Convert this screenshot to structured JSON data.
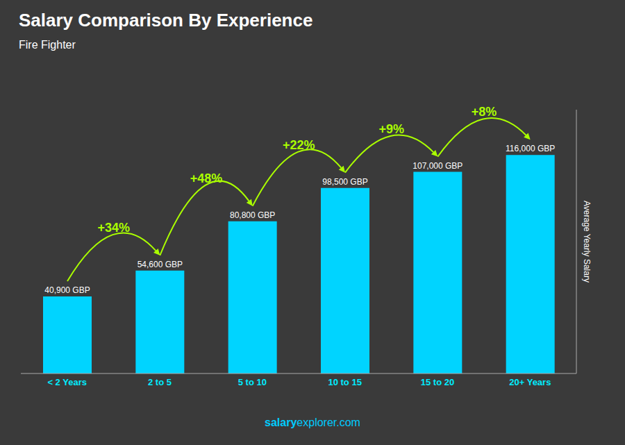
{
  "chart_data": {
    "type": "bar",
    "title": "Salary Comparison By Experience",
    "subtitle": "Fire Fighter",
    "y_label": "Average Yearly Salary",
    "categories": [
      "< 2 Years",
      "2 to 5",
      "5 to 10",
      "10 to 15",
      "15 to 20",
      "20+ Years"
    ],
    "values": [
      40900,
      54600,
      80800,
      98500,
      107000,
      116000
    ],
    "value_labels": [
      "40,900 GBP",
      "54,600 GBP",
      "80,800 GBP",
      "98,500 GBP",
      "107,000 GBP",
      "116,000 GBP"
    ],
    "data_labels": true,
    "color": "#00d4ff",
    "ylim": [
      0,
      140000
    ],
    "tick_labels": "x",
    "grid": false,
    "annotations": [
      {
        "text": "+34%",
        "color": "#aaff00"
      },
      {
        "text": "+48%",
        "color": "#aaff00"
      },
      {
        "text": "+22%",
        "color": "#aaff00"
      },
      {
        "text": "+9%",
        "color": "#aaff00"
      },
      {
        "text": "+8%",
        "color": "#aaff00"
      }
    ],
    "watermark": {
      "text": [
        "salary",
        "explorer.com"
      ],
      "color": "#00ccff"
    }
  }
}
